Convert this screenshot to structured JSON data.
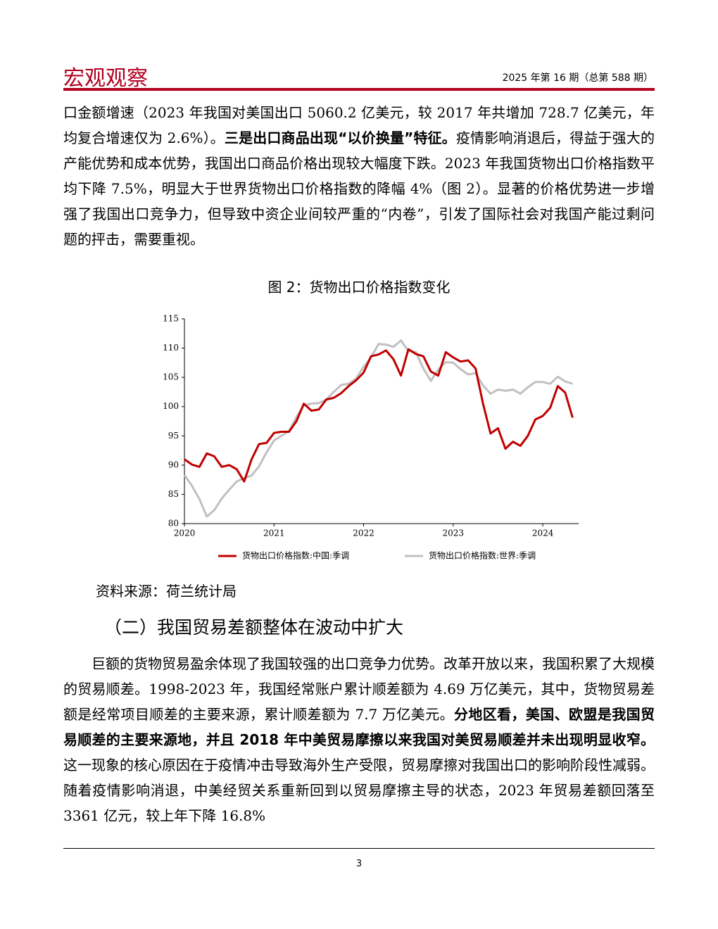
{
  "header": {
    "title": "宏观观察",
    "issue": "2025 年第 16 期（总第 588 期）"
  },
  "paragraph_1": [
    {
      "text": "口金额增速（2023 年我国对美国出口 5060.2 亿美元，较 2017 年共增加 728.7 亿美元，年均复合增速仅为 2.6%）。",
      "bold": false
    },
    {
      "text": "三是出口商品出现“以价换量”特征。",
      "bold": true
    },
    {
      "text": "疫情影响消退后，得益于强大的产能优势和成本优势，我国出口商品价格出现较大幅度下跌。2023 年我国货物出口价格指数平均下降 7.5%，明显大于世界货物出口价格指数的降幅 4%（图 2）。显著的价格优势进一步增强了我国出口竞争力，但导致中资企业间较严重的“内卷”，引发了国际社会对我国产能过剩问题的抨击，需要重视。",
      "bold": false
    }
  ],
  "chart_data": {
    "type": "line",
    "title": "图 2：货物出口价格指数变化",
    "x": [
      2020,
      2020.083,
      2020.167,
      2020.25,
      2020.333,
      2020.417,
      2020.5,
      2020.583,
      2020.667,
      2020.75,
      2020.833,
      2020.917,
      2021,
      2021.083,
      2021.167,
      2021.25,
      2021.333,
      2021.417,
      2021.5,
      2021.583,
      2021.667,
      2021.75,
      2021.833,
      2021.917,
      2022,
      2022.083,
      2022.167,
      2022.25,
      2022.333,
      2022.417,
      2022.5,
      2022.583,
      2022.667,
      2022.75,
      2022.833,
      2022.917,
      2023,
      2023.083,
      2023.167,
      2023.25,
      2023.333,
      2023.417,
      2023.5,
      2023.583,
      2023.667,
      2023.75,
      2023.833,
      2023.917,
      2024,
      2024.083,
      2024.167,
      2024.25,
      2024.333
    ],
    "series": [
      {
        "name": "货物出口价格指数:中国:季调",
        "color": "#c00000",
        "values": [
          91,
          90.1,
          89.7,
          92,
          91.5,
          89.7,
          90,
          89.3,
          87.2,
          91,
          93.6,
          93.8,
          95.5,
          95.7,
          95.7,
          97.5,
          100.5,
          99.3,
          99.5,
          101.2,
          101.5,
          102.3,
          103.5,
          104.5,
          105.8,
          108.6,
          108.9,
          109.6,
          108.1,
          105.3,
          109.8,
          109,
          108.6,
          106,
          105.3,
          109.3,
          108.4,
          107.7,
          107.9,
          106.5,
          100.5,
          95.4,
          96.3,
          92.8,
          94,
          93.3,
          95,
          97.8,
          98.4,
          99.8,
          103.5,
          102.4,
          98.1
        ]
      },
      {
        "name": "货物出口价格指数:世界:季调",
        "color": "#c0c0c0",
        "values": [
          88.3,
          86.5,
          84.2,
          81.2,
          82.3,
          84.3,
          85.8,
          87.2,
          87.8,
          88.2,
          89.8,
          92.2,
          94.2,
          95,
          95.8,
          98.2,
          100.2,
          100.5,
          100.6,
          101.2,
          102.5,
          103.7,
          103.9,
          104.8,
          106.8,
          108.4,
          110.7,
          110.6,
          110.2,
          111.3,
          109.5,
          109.3,
          106.5,
          104.4,
          106.3,
          107.6,
          107.5,
          106.4,
          105.5,
          105.7,
          103.6,
          102.2,
          102.9,
          102.7,
          102.9,
          102.2,
          103.3,
          104.2,
          104.2,
          103.9,
          105.1,
          104.3,
          103.9
        ]
      }
    ],
    "xlim": [
      2020,
      2024.4
    ],
    "xticks": [
      2020,
      2021,
      2022,
      2023,
      2024
    ],
    "ylim": [
      80,
      115
    ],
    "yticks": [
      80,
      85,
      90,
      95,
      100,
      105,
      110,
      115
    ],
    "legend": "bottom",
    "grid": false
  },
  "source": "资料来源：荷兰统计局",
  "section_heading": "（二）我国贸易差额整体在波动中扩大",
  "paragraph_2": [
    {
      "text": "巨额的货物贸易盈余体现了我国较强的出口竞争力优势。改革开放以来，我国积累了大规模的贸易顺差。1998-2023 年，我国经常账户累计顺差额为 4.69 万亿美元，其中，货物贸易差额是经常项目顺差的主要来源，累计顺差额为 7.7 万亿美元。",
      "bold": false
    },
    {
      "text": "分地区看，美国、欧盟是我国贸易顺差的主要来源地，并且 2018 年中美贸易摩擦以来我国对美贸易顺差并未出现明显收窄。",
      "bold": true
    },
    {
      "text": "这一现象的核心原因在于疫情冲击导致海外生产受限，贸易摩擦对我国出口的影响阶段性减弱。随着疫情影响消退，中美经贸关系重新回到以贸易摩擦主导的状态，2023 年贸易差额回落至 3361 亿元，较上年下降 16.8%",
      "bold": false
    }
  ],
  "page_number": "3"
}
